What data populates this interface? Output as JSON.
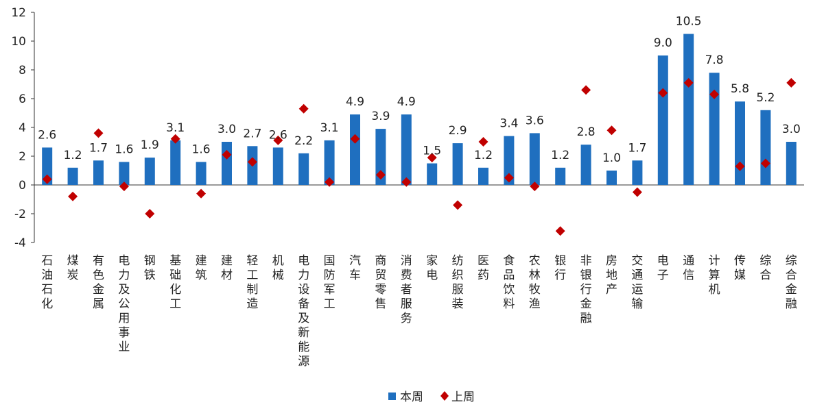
{
  "chart_data": {
    "type": "bar",
    "categories": [
      "石油石化",
      "煤炭",
      "有色金属",
      "电力及公用事业",
      "钢铁",
      "基础化工",
      "建筑",
      "建材",
      "轻工制造",
      "机械",
      "电力设备及新能源",
      "国防军工",
      "汽车",
      "商贸零售",
      "消费者服务",
      "家电",
      "纺织服装",
      "医药",
      "食品饮料",
      "农林牧渔",
      "银行",
      "非银行金融",
      "房地产",
      "交通运输",
      "电子",
      "通信",
      "计算机",
      "传媒",
      "综合",
      "综合金融"
    ],
    "series": [
      {
        "name": "本周",
        "mark": "bar",
        "color": "#1f6fbf",
        "values": [
          2.6,
          1.2,
          1.7,
          1.6,
          1.9,
          3.1,
          1.6,
          3.0,
          2.7,
          2.6,
          2.2,
          3.1,
          4.9,
          3.9,
          4.9,
          1.5,
          2.9,
          1.2,
          3.4,
          3.6,
          1.2,
          2.8,
          1.0,
          1.7,
          9.0,
          10.5,
          7.8,
          5.8,
          5.2,
          3.0
        ],
        "labels": [
          "2.6",
          "1.2",
          "1.7",
          "1.6",
          "1.9",
          "3.1",
          "1.6",
          "3.0",
          "2.7",
          "2.6",
          "2.2",
          "3.1",
          "4.9",
          "3.9",
          "4.9",
          "1.5",
          "2.9",
          "1.2",
          "3.4",
          "3.6",
          "1.2",
          "2.8",
          "1.0",
          "1.7",
          "9.0",
          "10.5",
          "7.8",
          "5.8",
          "5.2",
          "3.0"
        ]
      },
      {
        "name": "上周",
        "mark": "diamond",
        "color": "#c00000",
        "values": [
          0.4,
          -0.8,
          3.6,
          -0.1,
          -2.0,
          3.2,
          -0.6,
          2.1,
          1.6,
          3.1,
          5.3,
          0.2,
          3.2,
          0.7,
          0.2,
          1.9,
          -1.4,
          3.0,
          0.5,
          -0.1,
          -3.2,
          6.6,
          3.8,
          -0.5,
          6.4,
          7.1,
          6.3,
          1.3,
          1.5,
          7.1
        ]
      }
    ],
    "yticks": [
      "12",
      "10",
      "8",
      "6",
      "4",
      "2",
      "0",
      "-2",
      "-4"
    ],
    "ylim": [
      -4,
      12
    ],
    "legend_position": "bottom"
  }
}
